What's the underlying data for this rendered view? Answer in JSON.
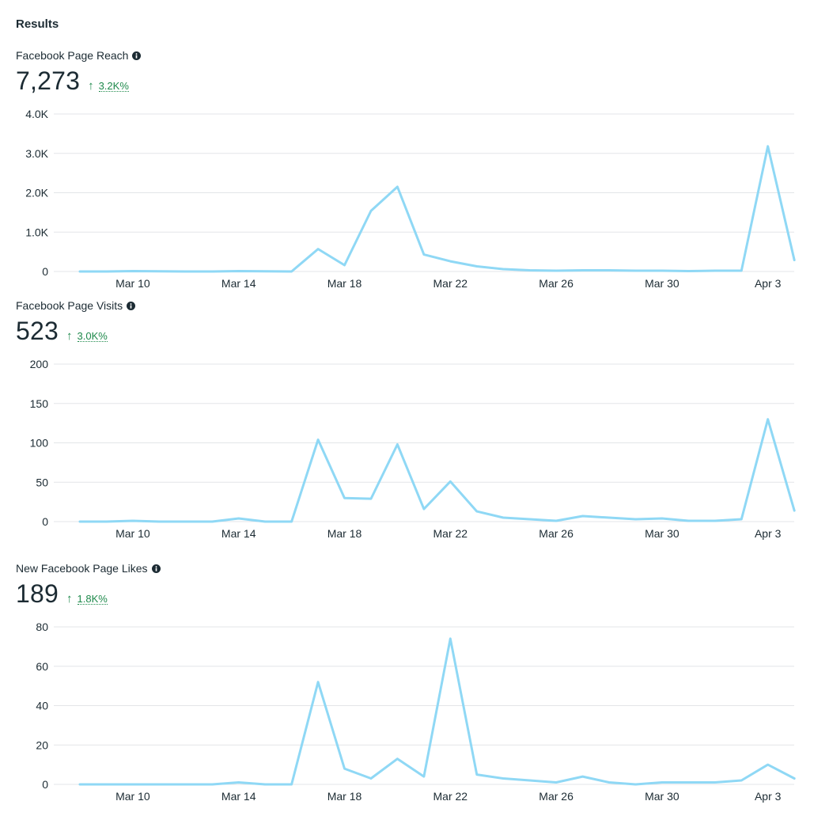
{
  "section_title": "Results",
  "colors": {
    "line": "#8fd8f5",
    "grid": "#e3e5e8",
    "trend_up": "#1f8a4c",
    "text": "#1c2b33"
  },
  "icons": {
    "info": "info-circle-icon",
    "trend": "arrow-up-icon"
  },
  "metrics": [
    {
      "title": "Facebook Page Reach",
      "value": "7,273",
      "change": "3.2K%"
    },
    {
      "title": "Facebook Page Visits",
      "value": "523",
      "change": "3.0K%"
    },
    {
      "title": "New Facebook Page Likes",
      "value": "189",
      "change": "1.8K%"
    }
  ],
  "chart_data": [
    {
      "type": "line",
      "title": "Facebook Page Reach",
      "x": [
        "Mar 8",
        "Mar 9",
        "Mar 10",
        "Mar 11",
        "Mar 12",
        "Mar 13",
        "Mar 14",
        "Mar 15",
        "Mar 16",
        "Mar 17",
        "Mar 18",
        "Mar 19",
        "Mar 20",
        "Mar 21",
        "Mar 22",
        "Mar 23",
        "Mar 24",
        "Mar 25",
        "Mar 26",
        "Mar 27",
        "Mar 28",
        "Mar 29",
        "Mar 30",
        "Mar 31",
        "Apr 1",
        "Apr 2",
        "Apr 3",
        "Apr 4"
      ],
      "x_tick_labels": [
        "Mar 10",
        "Mar 14",
        "Mar 18",
        "Mar 22",
        "Mar 26",
        "Mar 30",
        "Apr 3"
      ],
      "y_tick_labels": [
        "0",
        "1.0K",
        "2.0K",
        "3.0K",
        "4.0K"
      ],
      "ylim": [
        0,
        4000
      ],
      "grid": true,
      "series": [
        {
          "values": [
            0,
            0,
            10,
            5,
            0,
            0,
            10,
            5,
            0,
            570,
            160,
            1540,
            2150,
            430,
            260,
            130,
            60,
            30,
            20,
            30,
            30,
            20,
            20,
            10,
            20,
            20,
            3180,
            290
          ]
        }
      ]
    },
    {
      "type": "line",
      "title": "Facebook Page Visits",
      "x": [
        "Mar 8",
        "Mar 9",
        "Mar 10",
        "Mar 11",
        "Mar 12",
        "Mar 13",
        "Mar 14",
        "Mar 15",
        "Mar 16",
        "Mar 17",
        "Mar 18",
        "Mar 19",
        "Mar 20",
        "Mar 21",
        "Mar 22",
        "Mar 23",
        "Mar 24",
        "Mar 25",
        "Mar 26",
        "Mar 27",
        "Mar 28",
        "Mar 29",
        "Mar 30",
        "Mar 31",
        "Apr 1",
        "Apr 2",
        "Apr 3",
        "Apr 4"
      ],
      "x_tick_labels": [
        "Mar 10",
        "Mar 14",
        "Mar 18",
        "Mar 22",
        "Mar 26",
        "Mar 30",
        "Apr 3"
      ],
      "y_tick_labels": [
        "0",
        "50",
        "100",
        "150",
        "200"
      ],
      "ylim": [
        0,
        200
      ],
      "grid": true,
      "series": [
        {
          "values": [
            0,
            0,
            1,
            0,
            0,
            0,
            4,
            0,
            0,
            104,
            30,
            29,
            98,
            16,
            51,
            13,
            5,
            3,
            1,
            7,
            5,
            3,
            4,
            1,
            1,
            3,
            130,
            14
          ]
        }
      ]
    },
    {
      "type": "line",
      "title": "New Facebook Page Likes",
      "x": [
        "Mar 8",
        "Mar 9",
        "Mar 10",
        "Mar 11",
        "Mar 12",
        "Mar 13",
        "Mar 14",
        "Mar 15",
        "Mar 16",
        "Mar 17",
        "Mar 18",
        "Mar 19",
        "Mar 20",
        "Mar 21",
        "Mar 22",
        "Mar 23",
        "Mar 24",
        "Mar 25",
        "Mar 26",
        "Mar 27",
        "Mar 28",
        "Mar 29",
        "Mar 30",
        "Mar 31",
        "Apr 1",
        "Apr 2",
        "Apr 3",
        "Apr 4"
      ],
      "x_tick_labels": [
        "Mar 10",
        "Mar 14",
        "Mar 18",
        "Mar 22",
        "Mar 26",
        "Mar 30",
        "Apr 3"
      ],
      "y_tick_labels": [
        "0",
        "20",
        "40",
        "60",
        "80"
      ],
      "ylim": [
        0,
        80
      ],
      "grid": true,
      "series": [
        {
          "values": [
            0,
            0,
            0,
            0,
            0,
            0,
            1,
            0,
            0,
            52,
            8,
            3,
            13,
            4,
            74,
            5,
            3,
            2,
            1,
            4,
            1,
            0,
            1,
            1,
            1,
            2,
            10,
            3
          ]
        }
      ]
    }
  ]
}
